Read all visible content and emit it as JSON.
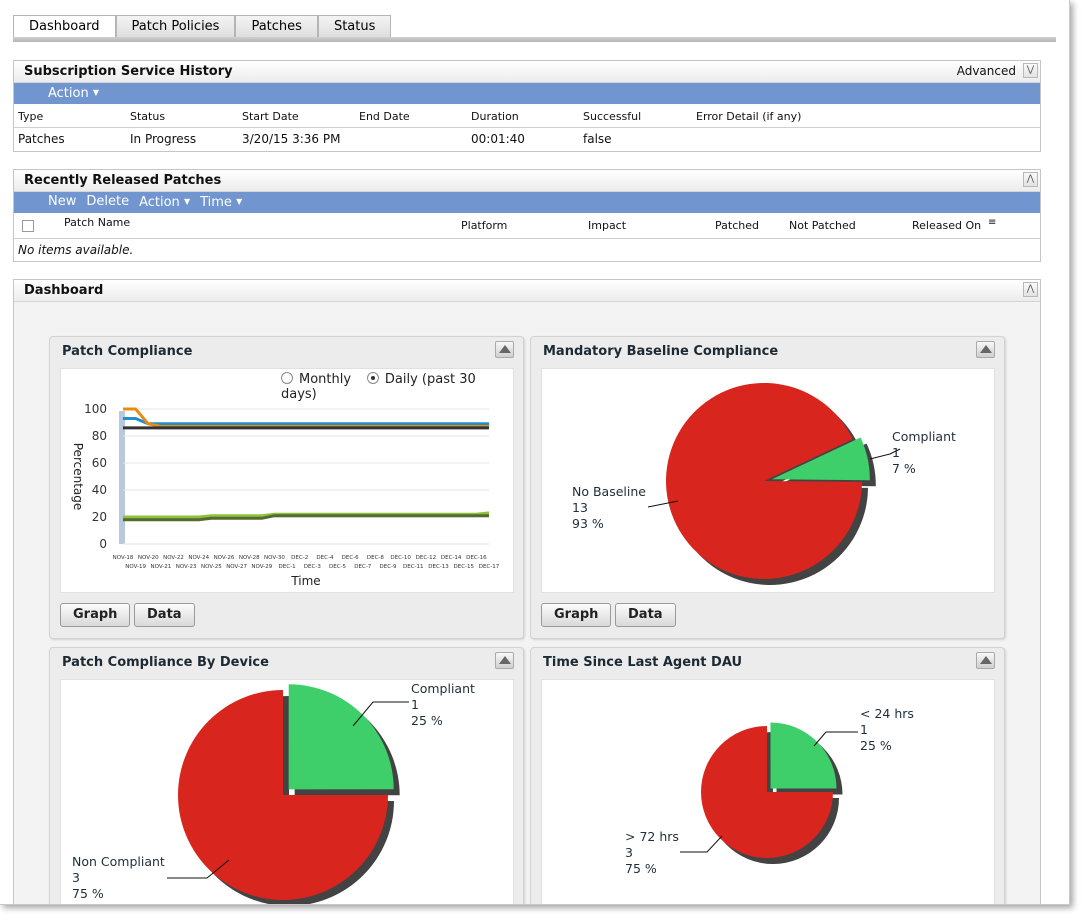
{
  "tabs": [
    "Dashboard",
    "Patch Policies",
    "Patches",
    "Status"
  ],
  "subscription": {
    "title": "Subscription Service History",
    "advanced": "Advanced",
    "action": "Action",
    "columns": [
      "Type",
      "Status",
      "Start Date",
      "End Date",
      "Duration",
      "Successful",
      "Error Detail (if any)"
    ],
    "row": {
      "type": "Patches",
      "status": "In Progress",
      "start": "3/20/15 3:36 PM",
      "end": "",
      "duration": "00:01:40",
      "successful": "false",
      "error": ""
    }
  },
  "recent": {
    "title": "Recently Released Patches",
    "toolbar": {
      "new": "New",
      "delete": "Delete",
      "action": "Action",
      "time": "Time"
    },
    "columns": [
      "Patch Name",
      "Platform",
      "Impact",
      "Patched",
      "Not Patched",
      "Released On"
    ],
    "empty": "No items available."
  },
  "dashboard": {
    "title": "Dashboard",
    "graph_btn": "Graph",
    "data_btn": "Data"
  },
  "colors": {
    "compliant": "#3ecf6a",
    "noncompliant": "#d8261f",
    "toolbar": "#7095cf"
  },
  "chart_data": [
    {
      "type": "line",
      "title": "Patch Compliance",
      "options": {
        "monthly": "Monthly",
        "daily": "Daily (past 30 days)",
        "selected": "daily"
      },
      "ylabel": "Percentage",
      "xlabel": "Time",
      "ylim": [
        0,
        100
      ],
      "yticks": [
        0,
        20,
        40,
        60,
        80,
        100
      ],
      "x": [
        "NOV-18",
        "NOV-19",
        "NOV-20",
        "NOV-21",
        "NOV-22",
        "NOV-23",
        "NOV-24",
        "NOV-25",
        "NOV-26",
        "NOV-27",
        "NOV-28",
        "NOV-29",
        "NOV-30",
        "DEC-1",
        "DEC-2",
        "DEC-3",
        "DEC-4",
        "DEC-5",
        "DEC-6",
        "DEC-7",
        "DEC-8",
        "DEC-9",
        "DEC-10",
        "DEC-11",
        "DEC-12",
        "DEC-13",
        "DEC-14",
        "DEC-15",
        "DEC-16",
        "DEC-17"
      ],
      "series": [
        {
          "color": "#1e8fd0",
          "values": [
            93,
            93,
            89,
            89,
            89,
            89,
            89,
            89,
            89,
            89,
            89,
            89,
            89,
            89,
            89,
            89,
            89,
            89,
            89,
            89,
            89,
            89,
            89,
            89,
            89,
            89,
            89,
            89,
            89,
            89
          ]
        },
        {
          "color": "#e98b10",
          "values": [
            100,
            100,
            89,
            87,
            87,
            87,
            87,
            87,
            87,
            87,
            87,
            87,
            87,
            87,
            87,
            87,
            87,
            87,
            87,
            87,
            87,
            87,
            87,
            87,
            87,
            87,
            87,
            87,
            87,
            87
          ]
        },
        {
          "color": "#333333",
          "values": [
            86,
            86,
            86,
            86,
            86,
            86,
            86,
            86,
            86,
            86,
            86,
            86,
            86,
            86,
            86,
            86,
            86,
            86,
            86,
            86,
            86,
            86,
            86,
            86,
            86,
            86,
            86,
            86,
            86,
            86
          ]
        },
        {
          "color": "#8fc23c",
          "values": [
            20,
            20,
            20,
            20,
            20,
            20,
            20,
            21,
            21,
            21,
            21,
            21,
            22,
            22,
            22,
            22,
            22,
            22,
            22,
            22,
            22,
            22,
            22,
            22,
            22,
            22,
            22,
            22,
            22,
            23
          ]
        },
        {
          "color": "#556b2f",
          "values": [
            18,
            18,
            18,
            18,
            18,
            18,
            18,
            19,
            19,
            19,
            19,
            19,
            21,
            21,
            21,
            21,
            21,
            21,
            21,
            21,
            21,
            21,
            21,
            21,
            21,
            21,
            21,
            21,
            21,
            21
          ]
        }
      ]
    },
    {
      "type": "pie",
      "title": "Mandatory Baseline Compliance",
      "slices": [
        {
          "label": "Compliant",
          "value": 1,
          "percent": "7 %"
        },
        {
          "label": "No Baseline",
          "value": 13,
          "percent": "93 %"
        }
      ]
    },
    {
      "type": "pie",
      "title": "Patch Compliance By Device",
      "slices": [
        {
          "label": "Compliant",
          "value": 1,
          "percent": "25 %"
        },
        {
          "label": "Non Compliant",
          "value": 3,
          "percent": "75 %"
        }
      ]
    },
    {
      "type": "pie",
      "title": "Time Since Last Agent DAU",
      "slices": [
        {
          "label": "< 24 hrs",
          "value": 1,
          "percent": "25 %"
        },
        {
          "label": "> 72 hrs",
          "value": 3,
          "percent": "75 %"
        }
      ]
    }
  ]
}
